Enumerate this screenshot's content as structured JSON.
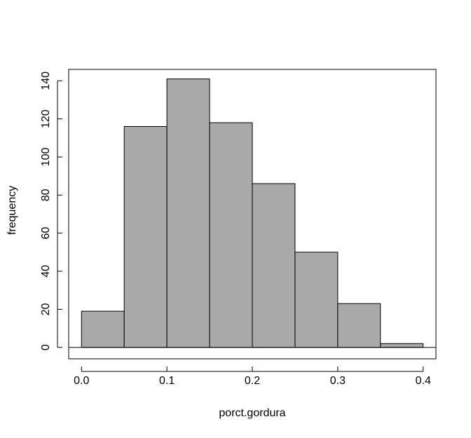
{
  "chart_data": {
    "type": "bar",
    "title": "",
    "xlabel": "porct.gordura",
    "ylabel": "frequency",
    "bin_edges": [
      0.0,
      0.05,
      0.1,
      0.15,
      0.2,
      0.25,
      0.3,
      0.35,
      0.4
    ],
    "values": [
      19,
      116,
      141,
      118,
      86,
      50,
      23,
      2
    ],
    "xlim": [
      -0.015,
      0.415
    ],
    "ylim": [
      -6,
      146
    ],
    "x_ticks": [
      "0.0",
      "0.1",
      "0.2",
      "0.3",
      "0.4"
    ],
    "y_ticks": [
      "0",
      "20",
      "40",
      "60",
      "80",
      "100",
      "120",
      "140"
    ],
    "bar_color": "#a9a9a9",
    "grid": false
  }
}
